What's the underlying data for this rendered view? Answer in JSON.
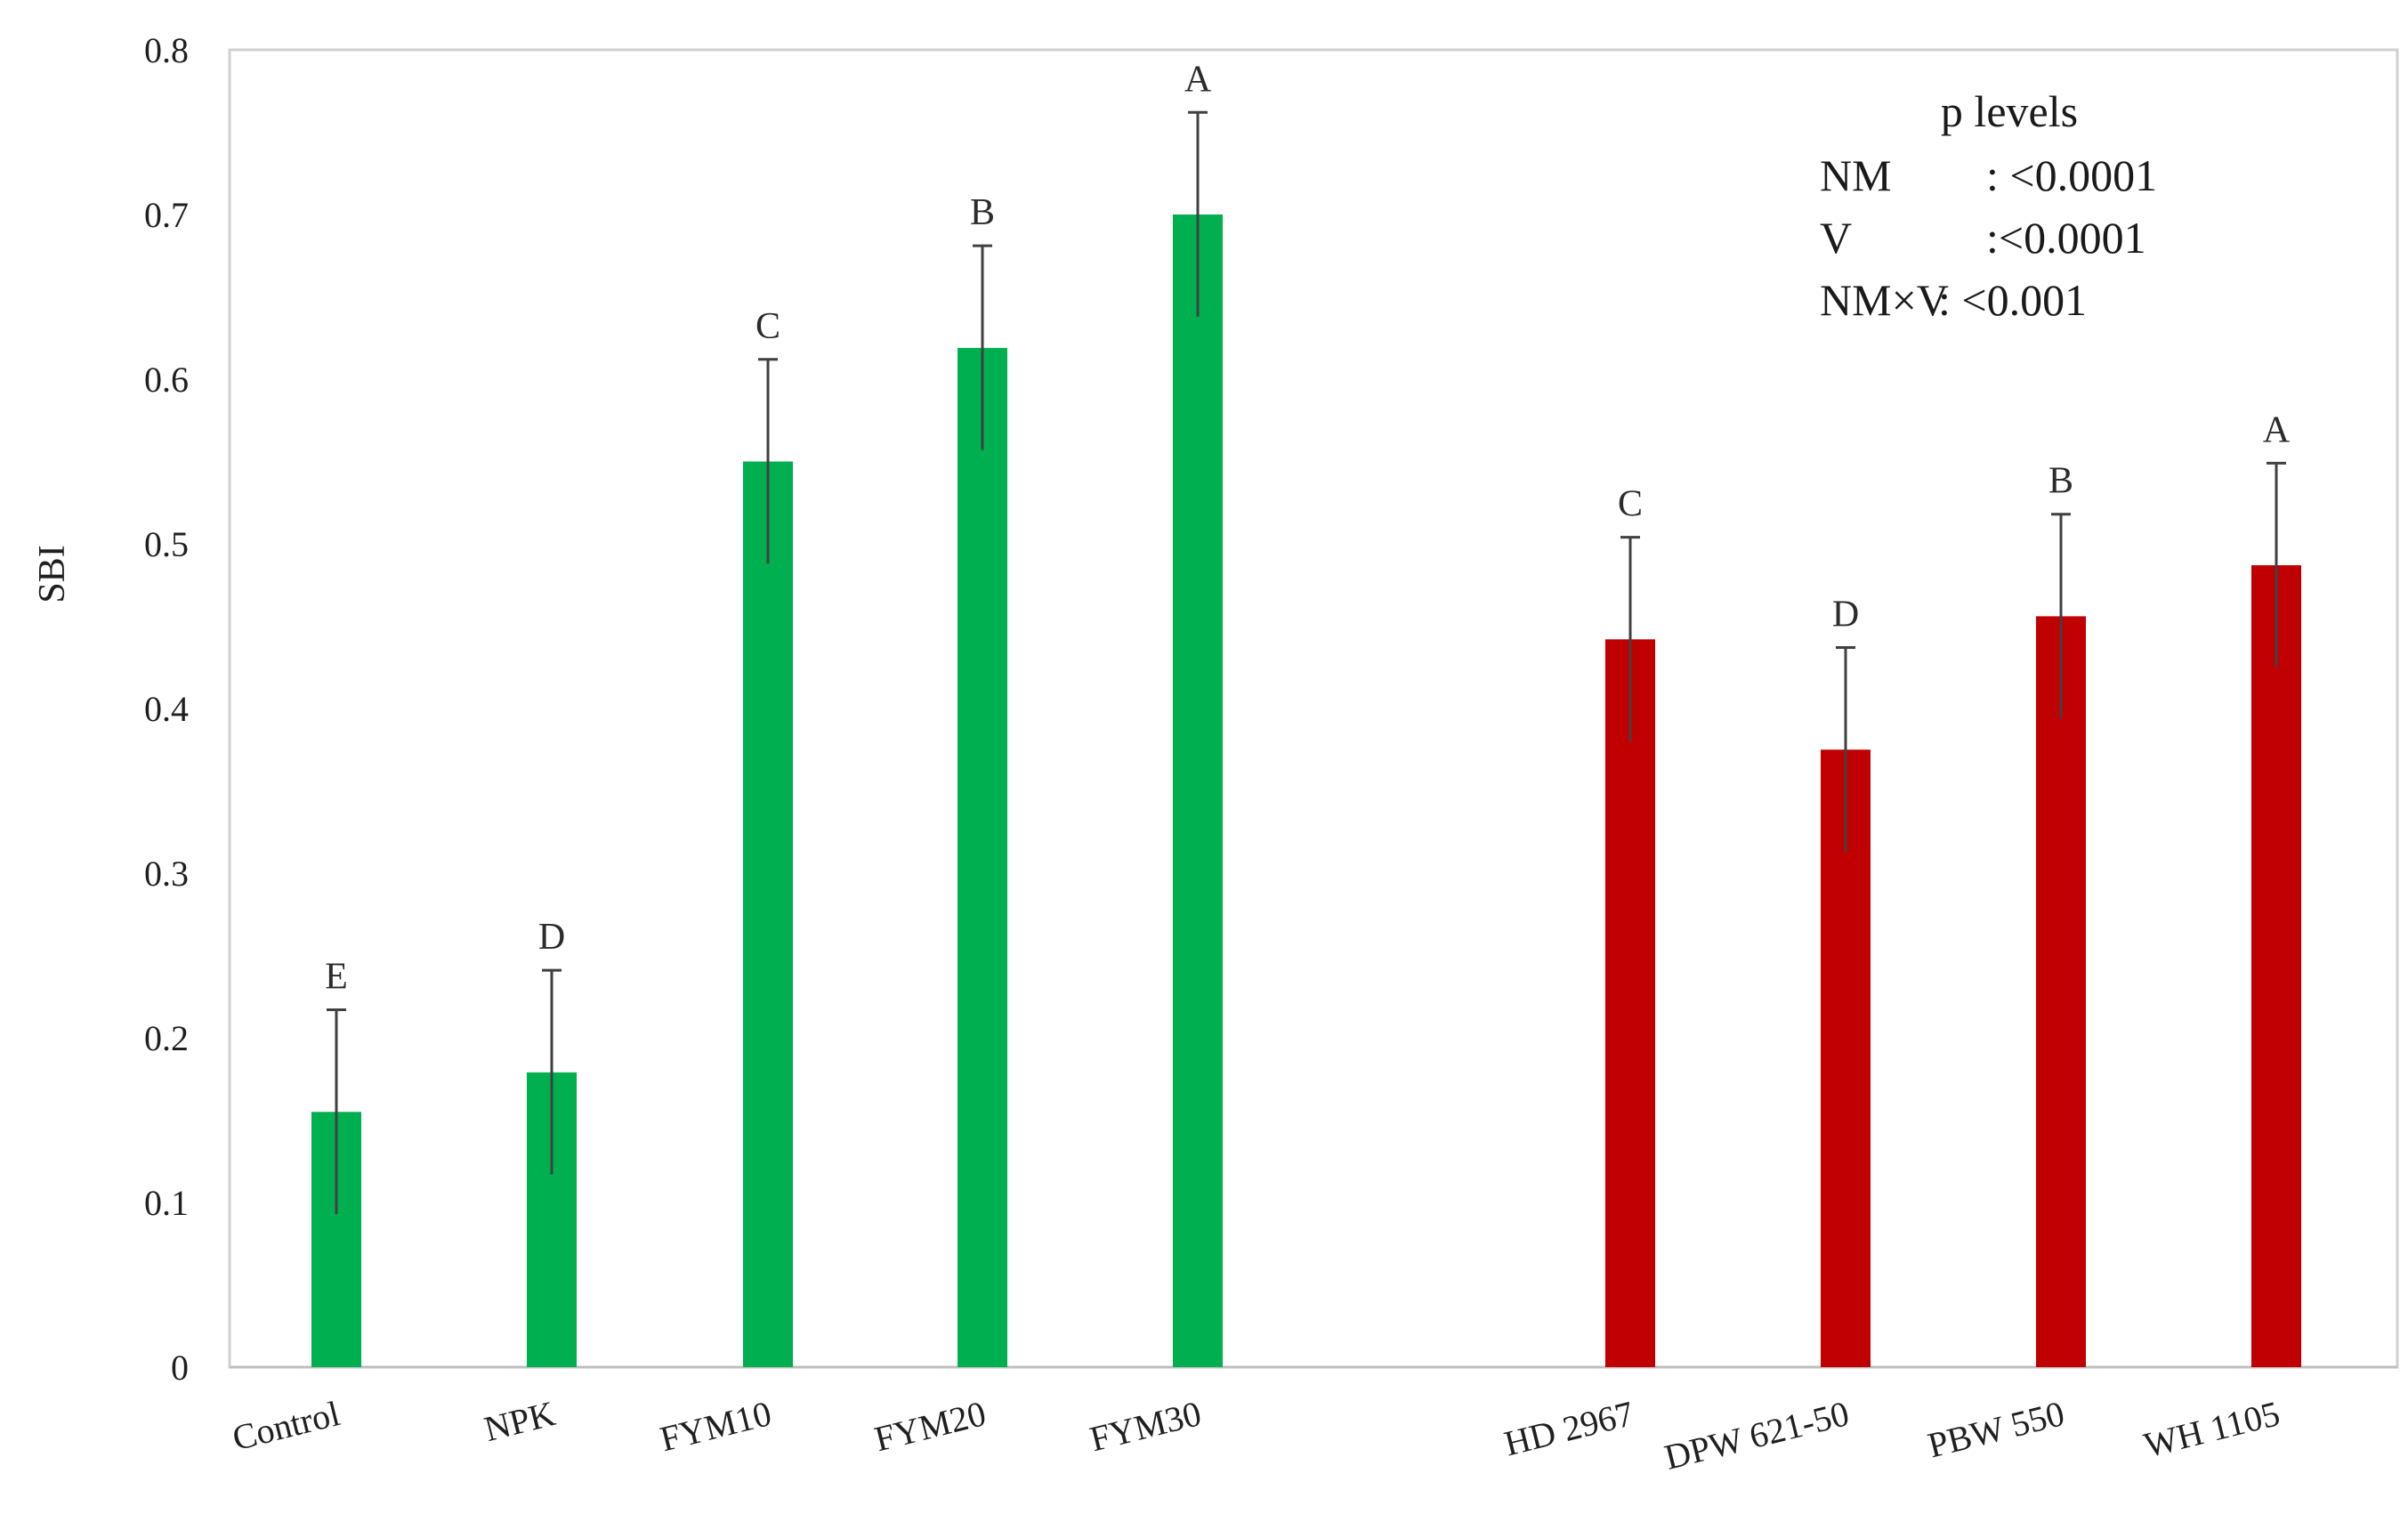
{
  "chart_data": {
    "type": "bar",
    "ylabel": "SBI",
    "ylim": [
      0,
      0.8
    ],
    "yticks": [
      "0",
      "0.1",
      "0.2",
      "0.3",
      "0.4",
      "0.5",
      "0.6",
      "0.7",
      "0.8"
    ],
    "grid": false,
    "categories": [
      "Control",
      "NPK",
      "FYM10",
      "FYM20",
      "FYM30",
      "HD 2967",
      "DPW 621-50",
      "PBW 550",
      "WH 1105"
    ],
    "series": [
      {
        "color": "#00b050",
        "points": [
          {
            "category": "Control",
            "value": 0.155,
            "error": 0.062,
            "letter": "E"
          },
          {
            "category": "NPK",
            "value": 0.179,
            "error": 0.062,
            "letter": "D"
          },
          {
            "category": "FYM10",
            "value": 0.55,
            "error": 0.062,
            "letter": "C"
          },
          {
            "category": "FYM20",
            "value": 0.619,
            "error": 0.062,
            "letter": "B"
          },
          {
            "category": "FYM30",
            "value": 0.7,
            "error": 0.062,
            "letter": "A"
          }
        ]
      },
      {
        "color": "#c00000",
        "points": [
          {
            "category": "HD 2967",
            "value": 0.442,
            "error": 0.062,
            "letter": "C"
          },
          {
            "category": "DPW 621-50",
            "value": 0.375,
            "error": 0.062,
            "letter": "D"
          },
          {
            "category": "PBW 550",
            "value": 0.456,
            "error": 0.062,
            "letter": "B"
          },
          {
            "category": "WH 1105",
            "value": 0.487,
            "error": 0.062,
            "letter": "A"
          }
        ]
      }
    ],
    "annotation": {
      "title": "p levels",
      "rows": [
        {
          "term": "NM",
          "value": ": <0.0001"
        },
        {
          "term": "V",
          "value": ":<0.0001"
        },
        {
          "term": "NM×V",
          "value": ": <0.001"
        }
      ]
    }
  }
}
